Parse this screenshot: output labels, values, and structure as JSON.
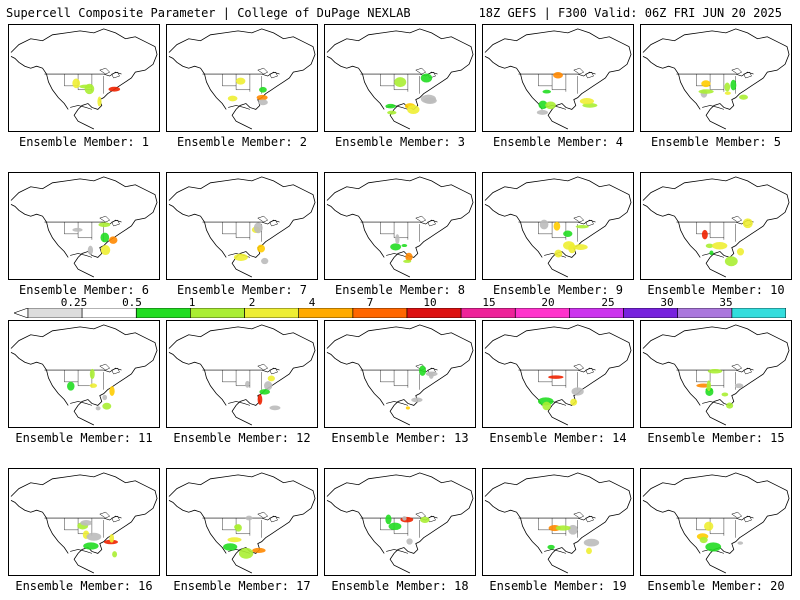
{
  "header": {
    "left_title": "Supercell Composite Parameter | College of DuPage NEXLAB",
    "right_title": "18Z GEFS | F300 Valid: 06Z FRI JUN 20 2025"
  },
  "colorbar": {
    "labels": [
      "0.25",
      "0.5",
      "1",
      "2",
      "4",
      "7",
      "10",
      "15",
      "20",
      "25",
      "30",
      "35"
    ],
    "colors": [
      "#ffffff",
      "#ffffff",
      "#22dd22",
      "#aaee33",
      "#eeee33",
      "#ffcc00",
      "#ff8800",
      "#ee2200",
      "#ee2288",
      "#ff22cc",
      "#dd33ee",
      "#9922ee",
      "#aa66dd",
      "#33dddd"
    ]
  },
  "members": [
    {
      "label": "Ensemble Member: 1"
    },
    {
      "label": "Ensemble Member: 2"
    },
    {
      "label": "Ensemble Member: 3"
    },
    {
      "label": "Ensemble Member: 4"
    },
    {
      "label": "Ensemble Member: 5"
    },
    {
      "label": "Ensemble Member: 6"
    },
    {
      "label": "Ensemble Member: 7"
    },
    {
      "label": "Ensemble Member: 8"
    },
    {
      "label": "Ensemble Member: 9"
    },
    {
      "label": "Ensemble Member: 10"
    },
    {
      "label": "Ensemble Member: 11"
    },
    {
      "label": "Ensemble Member: 12"
    },
    {
      "label": "Ensemble Member: 13"
    },
    {
      "label": "Ensemble Member: 14"
    },
    {
      "label": "Ensemble Member: 15"
    },
    {
      "label": "Ensemble Member: 16"
    },
    {
      "label": "Ensemble Member: 17"
    },
    {
      "label": "Ensemble Member: 18"
    },
    {
      "label": "Ensemble Member: 19"
    },
    {
      "label": "Ensemble Member: 20"
    }
  ]
}
